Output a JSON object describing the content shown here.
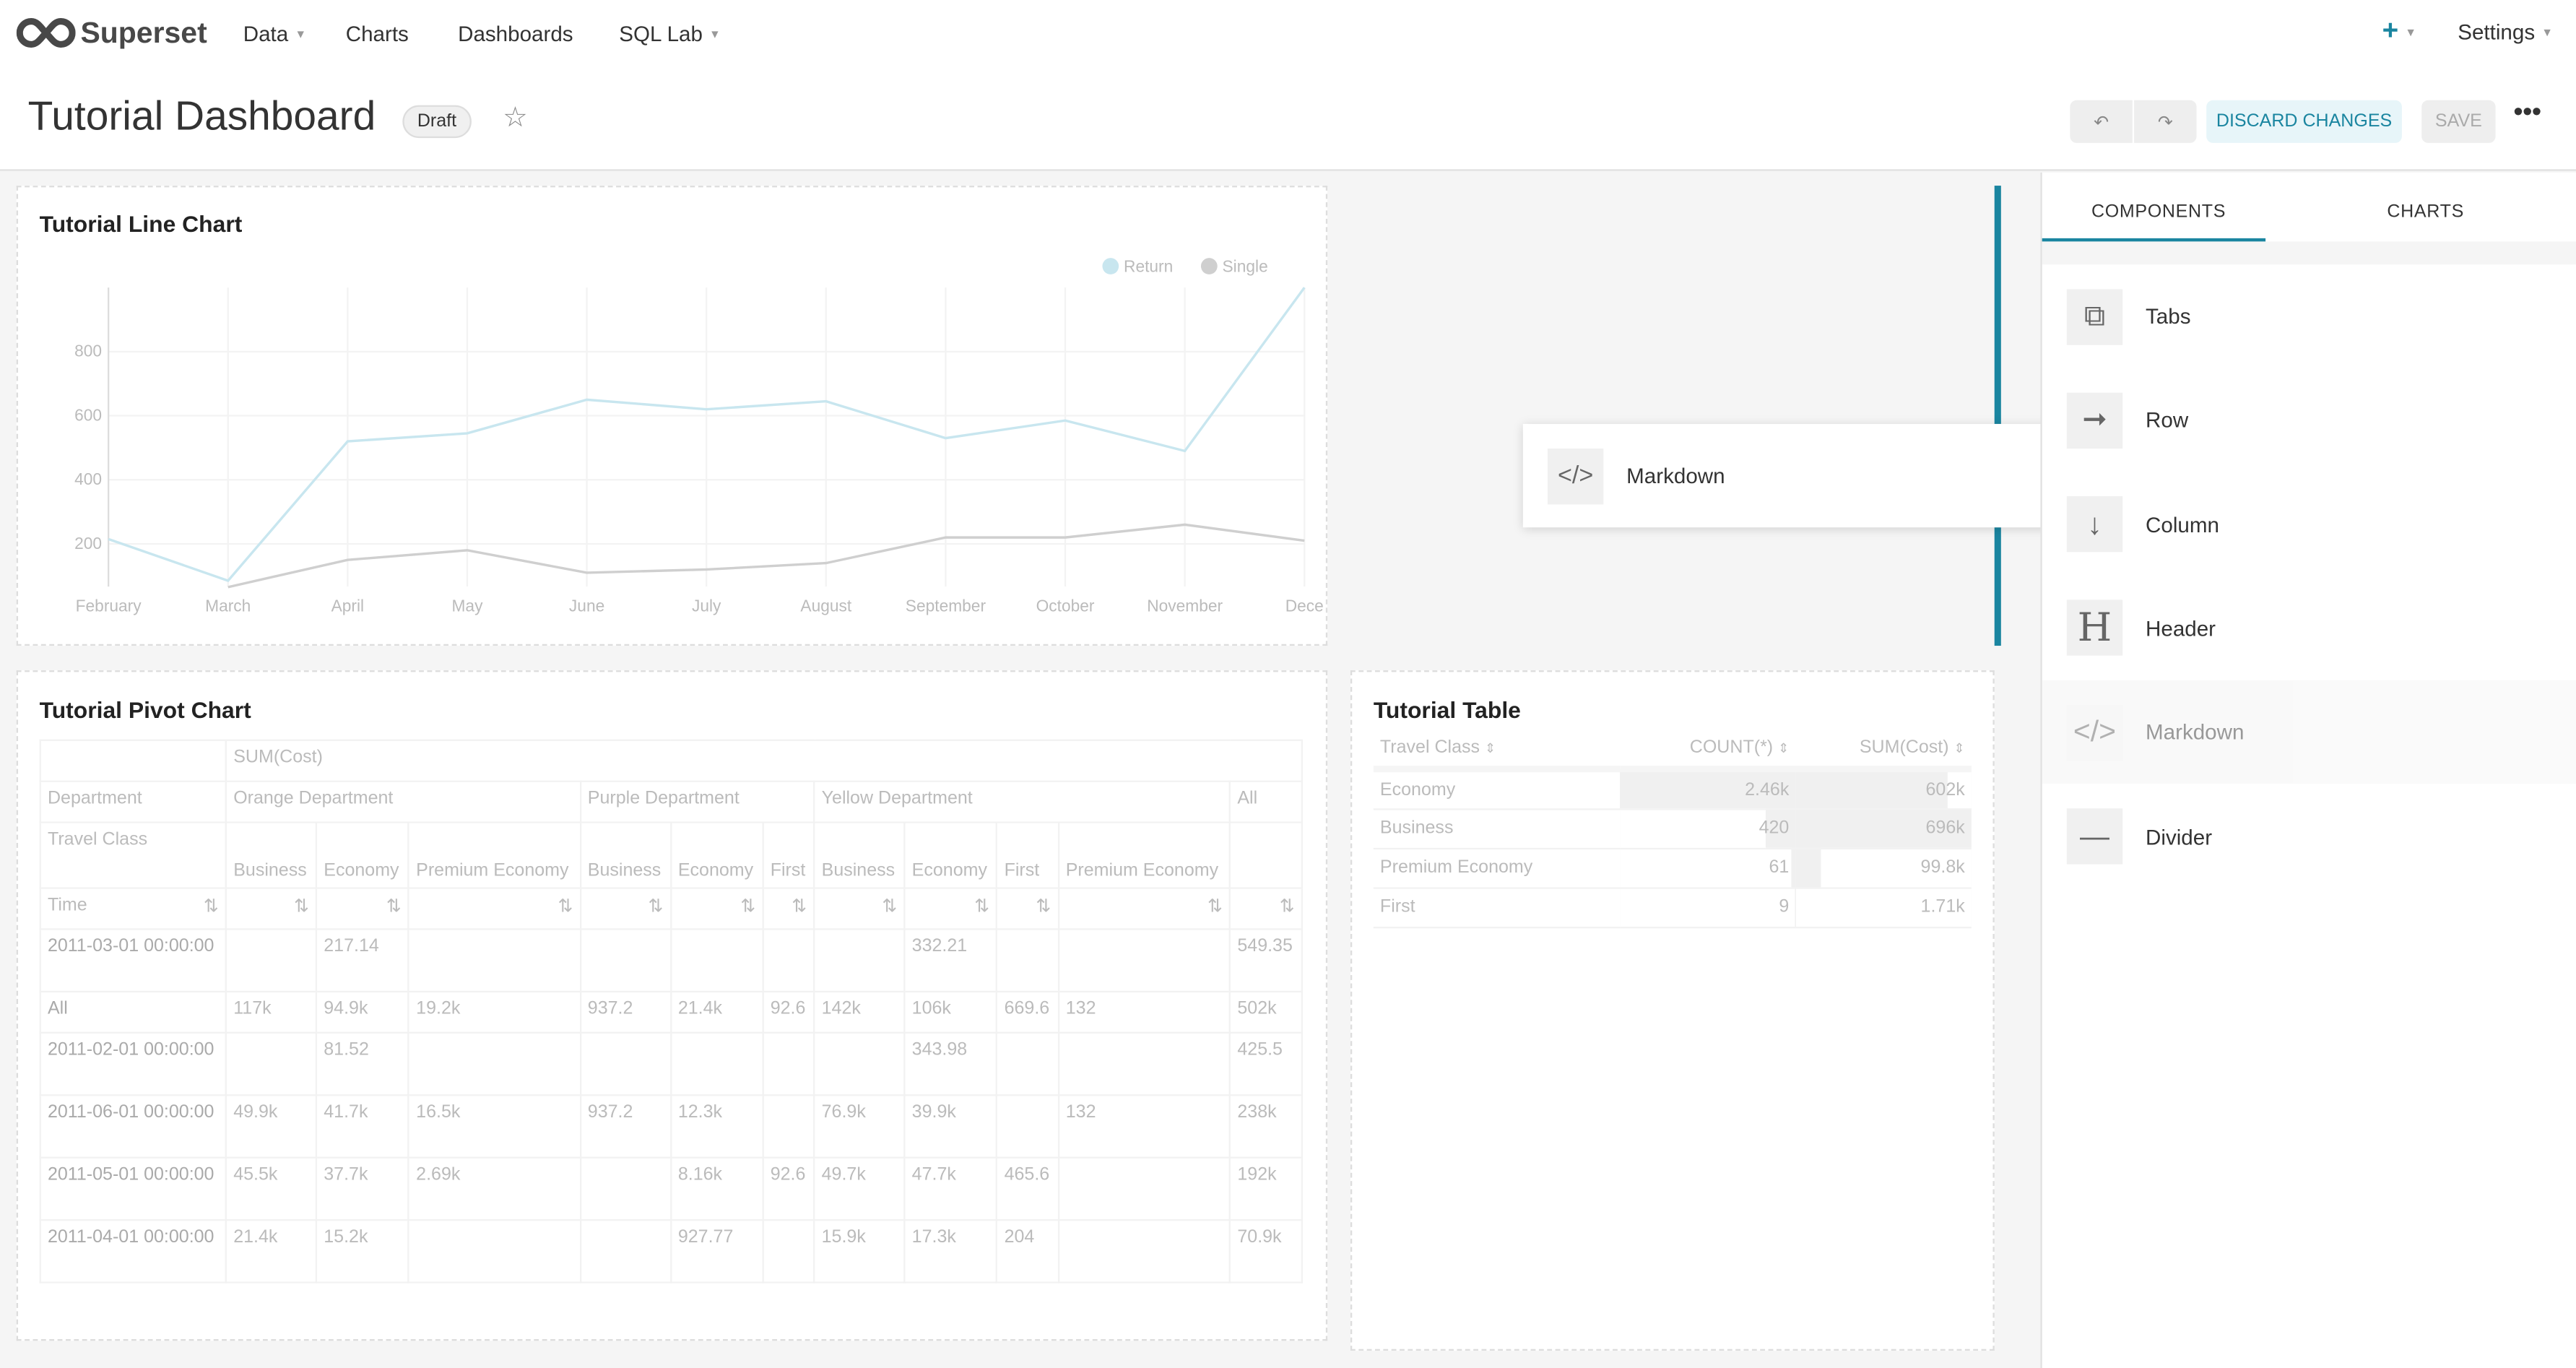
{
  "nav": {
    "brand": "Superset",
    "items": [
      {
        "label": "Data",
        "dropdown": true
      },
      {
        "label": "Charts"
      },
      {
        "label": "Dashboards"
      },
      {
        "label": "SQL Lab",
        "dropdown": true
      }
    ],
    "plus_icon": "plus-icon",
    "settings": "Settings"
  },
  "header": {
    "title": "Tutorial Dashboard",
    "status": "Draft",
    "discard": "DISCARD CHANGES",
    "save": "SAVE",
    "undo_icon": "undo-icon",
    "redo_icon": "redo-icon",
    "more_icon": "more-icon"
  },
  "colors": {
    "accent": "#20a7c9",
    "discard_bg": "#e7f5f9",
    "discard_text": "#1a85a0",
    "drop_indicator": "#1a85a0",
    "return_line": "#c8e6ef",
    "single_line": "#cfcfcf"
  },
  "drag_preview": {
    "label": "Markdown"
  },
  "line_chart": {
    "title": "Tutorial Line Chart",
    "chart_data": {
      "type": "line",
      "categories": [
        "February",
        "March",
        "April",
        "May",
        "June",
        "July",
        "August",
        "September",
        "October",
        "November",
        "December"
      ],
      "x_tick_labels": [
        "February",
        "March",
        "April",
        "May",
        "June",
        "July",
        "August",
        "September",
        "October",
        "November",
        "Dece"
      ],
      "yticks": [
        200,
        400,
        600,
        800
      ],
      "ylim": [
        0,
        1000
      ],
      "legend": "top-right",
      "series": [
        {
          "name": "Return",
          "values": [
            215,
            85,
            520,
            545,
            650,
            620,
            645,
            530,
            585,
            490,
            1000
          ]
        },
        {
          "name": "Single",
          "values": [
            null,
            65,
            150,
            180,
            110,
            120,
            140,
            220,
            220,
            260,
            210
          ]
        }
      ]
    }
  },
  "pivot": {
    "title": "Tutorial Pivot Chart",
    "metric": "SUM(Cost)",
    "dept_label": "Department",
    "class_label": "Travel Class",
    "time_label": "Time",
    "departments": [
      {
        "name": "Orange Department",
        "span": 3
      },
      {
        "name": "Purple Department",
        "span": 3
      },
      {
        "name": "Yellow Department",
        "span": 4
      },
      {
        "name": "All",
        "span": 1
      }
    ],
    "classes": [
      "Business",
      "Economy",
      "Premium Economy",
      "Business",
      "Economy",
      "First",
      "Business",
      "Economy",
      "First",
      "Premium Economy",
      ""
    ],
    "rows": [
      {
        "label": "2011-03-01 00:00:00",
        "cells": [
          "",
          "217.14",
          "",
          "",
          "",
          "",
          "",
          "332.21",
          "",
          "",
          "549.35"
        ]
      },
      {
        "label": "All",
        "cells": [
          "117k",
          "94.9k",
          "19.2k",
          "937.2",
          "21.4k",
          "92.6",
          "142k",
          "106k",
          "669.6",
          "132",
          "502k"
        ]
      },
      {
        "label": "2011-02-01 00:00:00",
        "cells": [
          "",
          "81.52",
          "",
          "",
          "",
          "",
          "",
          "343.98",
          "",
          "",
          "425.5"
        ]
      },
      {
        "label": "2011-06-01 00:00:00",
        "cells": [
          "49.9k",
          "41.7k",
          "16.5k",
          "937.2",
          "12.3k",
          "",
          "76.9k",
          "39.9k",
          "",
          "132",
          "238k"
        ]
      },
      {
        "label": "2011-05-01 00:00:00",
        "cells": [
          "45.5k",
          "37.7k",
          "2.69k",
          "",
          "8.16k",
          "92.6",
          "49.7k",
          "47.7k",
          "465.6",
          "",
          "192k"
        ]
      },
      {
        "label": "2011-04-01 00:00:00",
        "cells": [
          "21.4k",
          "15.2k",
          "",
          "",
          "927.77",
          "",
          "15.9k",
          "17.3k",
          "204",
          "",
          "70.9k"
        ]
      }
    ]
  },
  "table": {
    "title": "Tutorial Table",
    "columns": [
      "Travel Class",
      "COUNT(*)",
      "SUM(Cost)"
    ],
    "rows": [
      {
        "c": "Economy",
        "count": "2.46k",
        "count_v": 2460,
        "sum": "602k",
        "sum_v": 602000
      },
      {
        "c": "Business",
        "count": "420",
        "count_v": 420,
        "sum": "696k",
        "sum_v": 696000
      },
      {
        "c": "Premium Economy",
        "count": "61",
        "count_v": 61,
        "sum": "99.8k",
        "sum_v": 99800
      },
      {
        "c": "First",
        "count": "9",
        "count_v": 9,
        "sum": "1.71k",
        "sum_v": 1710
      }
    ]
  },
  "sidebar": {
    "tabs": [
      "COMPONENTS",
      "CHARTS"
    ],
    "active_tab": 0,
    "components": [
      {
        "label": "Tabs",
        "icon": "tabs-icon"
      },
      {
        "label": "Row",
        "icon": "row-arrow-icon"
      },
      {
        "label": "Column",
        "icon": "column-arrow-icon"
      },
      {
        "label": "Header",
        "icon": "header-icon"
      },
      {
        "label": "Markdown",
        "icon": "code-icon",
        "dragging": true
      },
      {
        "label": "Divider",
        "icon": "divider-icon"
      }
    ]
  }
}
